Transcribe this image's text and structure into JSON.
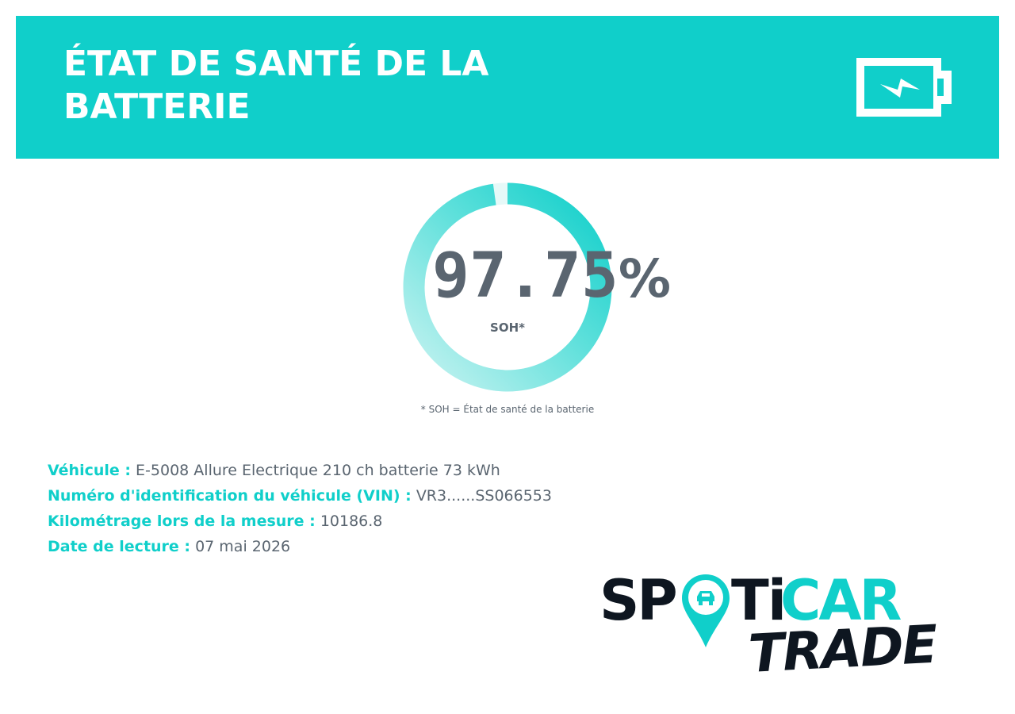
{
  "header": {
    "title": "ÉTAT DE SANTÉ DE LA BATTERIE",
    "icon": "battery-charging-icon"
  },
  "gauge": {
    "value": "97.75",
    "unit": "%",
    "percent": 97.75,
    "label": "SOH*",
    "footnote": "* SOH = État de santé de la batterie"
  },
  "details": {
    "vehicle_label": "Véhicule :",
    "vehicle_value": "E-5008 Allure Electrique 210 ch batterie 73 kWh",
    "vin_label": "Numéro d'identification du véhicule (VIN) :",
    "vin_value": "VR3......SS066553",
    "mileage_label": "Kilométrage lors de la mesure :",
    "mileage_value": "10186.8",
    "date_label": "Date de lecture :",
    "date_value": "07 mai 2026"
  },
  "logo": {
    "part1": "SP",
    "part2": "T",
    "part3": "i",
    "part4": "CAR",
    "part5": "TRADE",
    "icon": "location-pin-car-icon"
  },
  "colors": {
    "accent": "#10CFCA",
    "text": "#5A6570",
    "dark": "#0E1620",
    "background": "#FFFFFF"
  }
}
